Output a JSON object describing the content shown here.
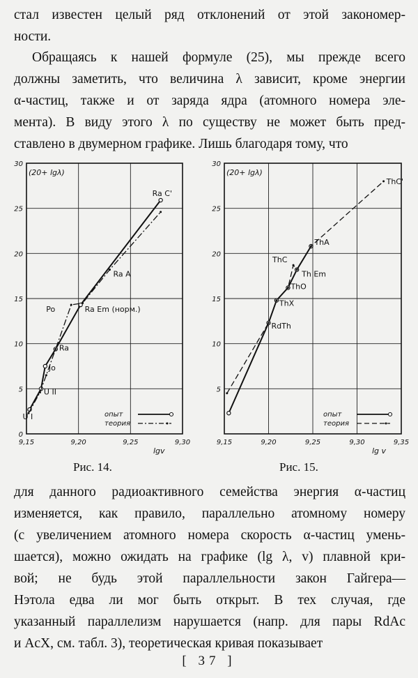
{
  "text": {
    "top_paragraph": [
      "стал известен целый ряд отклонений от этой закономер-",
      "ности."
    ],
    "para2": [
      "Обращаясь к нашей формуле (25), мы прежде всего",
      "должны заметить, что величина λ зависит, кроме энергии",
      "α-частиц, также и от заряда ядра (атомного номера эле-",
      "мента). В виду этого λ по существу не может быть пред-",
      "ставлено в двумерном графике. Лишь благодаря тому, что"
    ],
    "para3": [
      "для данного радиоактивного семейства энергия α-частиц",
      "изменяется, как правило, параллельно атомному номеру",
      "(с увеличением атомного номера скорость α-частиц умень-",
      "шается), можно ожидать на графике (lg λ, v) плавной кри-",
      "вой; не будь этой параллельности закон Гайгера—",
      "Нэтола едва ли мог быть открыт. В тех случая, где",
      "указанный параллелизм нарушается (напр. для пары RdAc",
      "и AcX, см. табл. 3), теоретическая кривая показывает"
    ],
    "page_number": "[ 37 ]"
  },
  "figures": {
    "fig14": {
      "caption": "Рис. 14."
    },
    "fig15": {
      "caption": "Рис. 15."
    }
  },
  "chart_data": [
    {
      "type": "line",
      "ylabel": "(20+ lgλ)",
      "xlabel": "lgv",
      "xlim": [
        9.15,
        9.3
      ],
      "ylim": [
        0,
        30
      ],
      "x_ticks": [
        "9,15",
        "9,20",
        "9,25",
        "9,30"
      ],
      "y_ticks": [
        "0",
        "5",
        "10",
        "15",
        "20",
        "25",
        "30"
      ],
      "grid": true,
      "legend": {
        "entries": [
          "опыт",
          "теория"
        ],
        "placement": "bottom-right"
      },
      "series": [
        {
          "name": "опыт",
          "style": "solid",
          "x": [
            9.153,
            9.164,
            9.168,
            9.178,
            9.202,
            9.279
          ],
          "y": [
            2.7,
            5.0,
            7.5,
            9.4,
            14.3,
            25.9
          ]
        },
        {
          "name": "теория",
          "style": "dash-dot",
          "x": [
            9.152,
            9.163,
            9.169,
            9.178,
            9.193,
            9.204,
            9.23,
            9.279
          ],
          "y": [
            2.3,
            4.6,
            6.5,
            9.4,
            14.3,
            14.5,
            18.2,
            24.6
          ]
        }
      ],
      "point_labels": [
        {
          "text": "U I",
          "x": 9.153,
          "y": 2.7
        },
        {
          "text": "U II",
          "x": 9.164,
          "y": 5.0
        },
        {
          "text": "Jo",
          "x": 9.168,
          "y": 7.5
        },
        {
          "text": "Ra",
          "x": 9.178,
          "y": 9.4
        },
        {
          "text": "Po",
          "x": 9.193,
          "y": 14.3
        },
        {
          "text": "Ra Em (норм.)",
          "x": 9.202,
          "y": 14.3
        },
        {
          "text": "Ra A",
          "x": 9.23,
          "y": 18.2
        },
        {
          "text": "Ra C'",
          "x": 9.279,
          "y": 25.9
        }
      ]
    },
    {
      "type": "line",
      "ylabel": "(20+ lgλ)",
      "xlabel": "lg v",
      "xlim": [
        9.15,
        9.35
      ],
      "ylim": [
        0,
        30
      ],
      "x_ticks": [
        "9,15",
        "9,20",
        "9,25",
        "9,30",
        "9,35"
      ],
      "y_ticks": [
        "5",
        "10",
        "15",
        "20",
        "25",
        "30"
      ],
      "grid": true,
      "legend": {
        "entries": [
          "опыт",
          "теория"
        ],
        "placement": "bottom-right"
      },
      "series": [
        {
          "name": "опыт",
          "style": "solid",
          "x": [
            9.155,
            9.2,
            9.209,
            9.222,
            9.232,
            9.248
          ],
          "y": [
            2.3,
            12.3,
            14.8,
            16.2,
            18.2,
            20.8
          ]
        },
        {
          "name": "теория",
          "style": "dashed",
          "x": [
            9.153,
            9.2,
            9.209,
            9.222,
            9.228,
            9.232,
            9.248,
            9.33
          ],
          "y": [
            4.5,
            12.3,
            14.8,
            16.2,
            18.7,
            18.2,
            20.8,
            28.0
          ]
        }
      ],
      "point_labels": [
        {
          "text": "RdTh",
          "x": 9.2,
          "y": 12.3
        },
        {
          "text": "ThX",
          "x": 9.209,
          "y": 14.8
        },
        {
          "text": "ThO",
          "x": 9.222,
          "y": 16.2
        },
        {
          "text": "Th Em",
          "x": 9.232,
          "y": 18.2
        },
        {
          "text": "ThC",
          "x": 9.228,
          "y": 18.7
        },
        {
          "text": "ThA",
          "x": 9.248,
          "y": 20.8
        },
        {
          "text": "ThC'",
          "x": 9.33,
          "y": 28.0
        }
      ]
    }
  ]
}
